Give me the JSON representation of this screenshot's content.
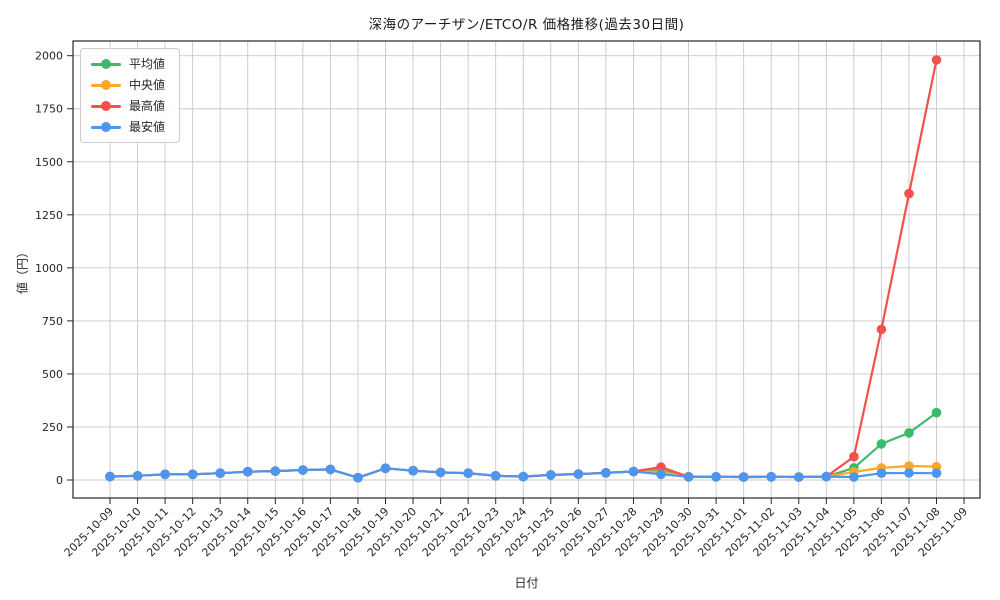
{
  "figure": {
    "background": "#ffffff",
    "spine_color": "#262626",
    "grid_color": "#c8c8c8"
  },
  "chart_data": {
    "type": "line",
    "title": "深海のアーチザン/ETCO/R 価格推移(過去30日間)",
    "xlabel": "日付",
    "ylabel": "値（円）",
    "grid": true,
    "legend_position": "upper left",
    "y_ticks": [
      0,
      250,
      500,
      750,
      1000,
      1250,
      1500,
      1750,
      2000
    ],
    "ylim": [
      -85,
      2070
    ],
    "x_tick_labels": [
      "2025-10-09",
      "2025-10-10",
      "2025-10-11",
      "2025-10-12",
      "2025-10-13",
      "2025-10-14",
      "2025-10-15",
      "2025-10-16",
      "2025-10-17",
      "2025-10-18",
      "2025-10-19",
      "2025-10-20",
      "2025-10-21",
      "2025-10-22",
      "2025-10-23",
      "2025-10-24",
      "2025-10-25",
      "2025-10-26",
      "2025-10-27",
      "2025-10-28",
      "2025-10-29",
      "2025-10-30",
      "2025-10-31",
      "2025-11-01",
      "2025-11-02",
      "2025-11-03",
      "2025-11-04",
      "2025-11-05",
      "2025-11-06",
      "2025-11-07",
      "2025-11-08",
      "2025-11-09"
    ],
    "categories": [
      "2025-10-09",
      "2025-10-10",
      "2025-10-11",
      "2025-10-12",
      "2025-10-13",
      "2025-10-14",
      "2025-10-15",
      "2025-10-16",
      "2025-10-17",
      "2025-10-18",
      "2025-10-19",
      "2025-10-20",
      "2025-10-21",
      "2025-10-22",
      "2025-10-23",
      "2025-10-24",
      "2025-10-25",
      "2025-10-26",
      "2025-10-27",
      "2025-10-28",
      "2025-10-29",
      "2025-10-30",
      "2025-10-31",
      "2025-11-01",
      "2025-11-02",
      "2025-11-03",
      "2025-11-04",
      "2025-11-05",
      "2025-11-06",
      "2025-11-07",
      "2025-11-08"
    ],
    "series": [
      {
        "name": "平均値",
        "color": "#3cba6c",
        "values": [
          16,
          20,
          27,
          27,
          32,
          39,
          42,
          47,
          50,
          11,
          55,
          44,
          36,
          32,
          20,
          16,
          24,
          28,
          34,
          40,
          47,
          15,
          15,
          14,
          15,
          14,
          16,
          57,
          170,
          222,
          317
        ]
      },
      {
        "name": "中央値",
        "color": "#ffa726",
        "values": [
          16,
          20,
          27,
          27,
          32,
          39,
          42,
          47,
          50,
          11,
          55,
          44,
          36,
          32,
          20,
          16,
          24,
          28,
          34,
          40,
          38,
          15,
          15,
          14,
          15,
          14,
          16,
          38,
          57,
          66,
          63
        ]
      },
      {
        "name": "最高値",
        "color": "#f4504c",
        "values": [
          16,
          20,
          27,
          27,
          32,
          39,
          42,
          47,
          50,
          11,
          55,
          44,
          36,
          32,
          20,
          16,
          24,
          28,
          34,
          40,
          61,
          15,
          15,
          14,
          15,
          14,
          16,
          110,
          710,
          1350,
          1980
        ]
      },
      {
        "name": "最安値",
        "color": "#4d96f0",
        "values": [
          16,
          20,
          27,
          27,
          32,
          39,
          42,
          47,
          50,
          11,
          55,
          44,
          36,
          32,
          20,
          16,
          24,
          28,
          34,
          40,
          27,
          15,
          15,
          14,
          15,
          14,
          16,
          14,
          32,
          33,
          32
        ]
      }
    ]
  }
}
